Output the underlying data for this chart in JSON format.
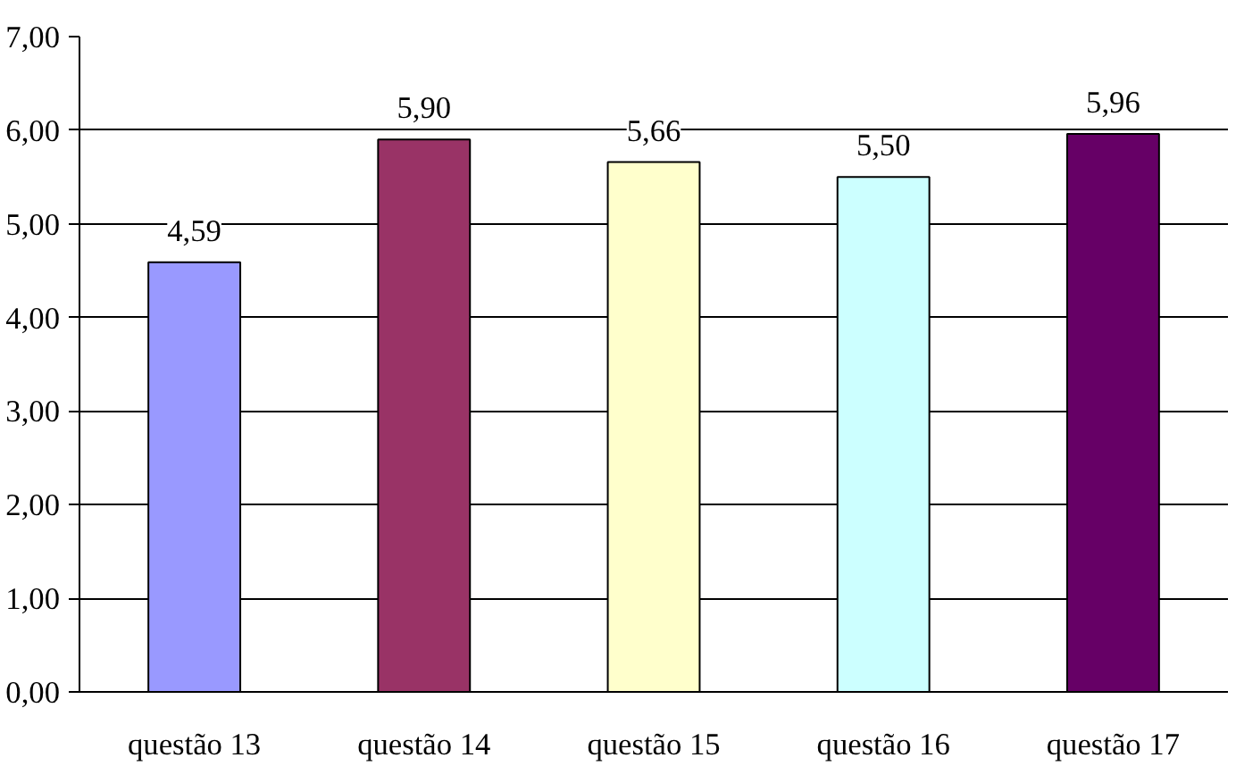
{
  "chart_data": {
    "type": "bar",
    "categories": [
      "questão 13",
      "questão 14",
      "questão 15",
      "questão 16",
      "questão 17"
    ],
    "values": [
      4.59,
      5.9,
      5.66,
      5.5,
      5.96
    ],
    "colors": [
      "#9999ff",
      "#993366",
      "#ffffcc",
      "#ccffff",
      "#660066"
    ],
    "value_labels": [
      "4,59",
      "5,90",
      "5,66",
      "5,50",
      "5,96"
    ],
    "ylim": [
      0,
      7
    ],
    "yticks": [
      {
        "value": 0,
        "label": "0,00"
      },
      {
        "value": 1,
        "label": "1,00"
      },
      {
        "value": 2,
        "label": "2,00"
      },
      {
        "value": 3,
        "label": "3,00"
      },
      {
        "value": 4,
        "label": "4,00"
      },
      {
        "value": 5,
        "label": "5,00"
      },
      {
        "value": 6,
        "label": "6,00"
      },
      {
        "value": 7,
        "label": "7,00"
      }
    ],
    "grid": "y"
  }
}
